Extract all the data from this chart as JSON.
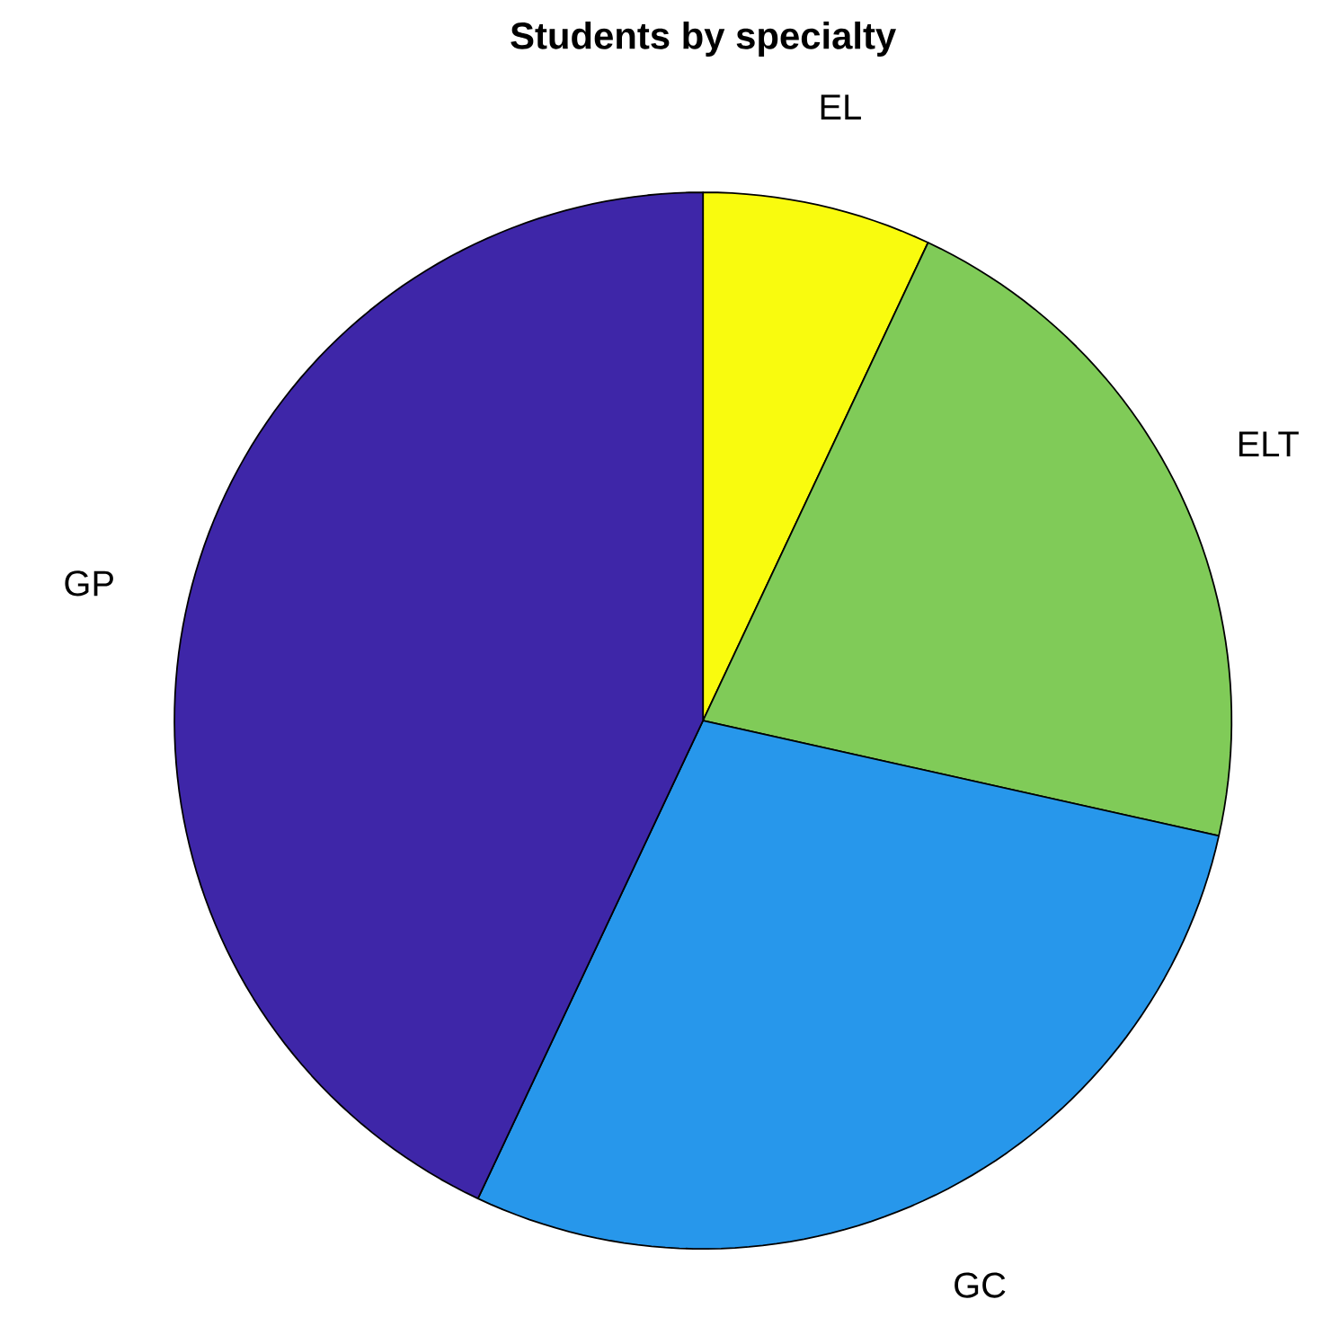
{
  "chart_data": {
    "type": "pie",
    "title": "Students by specialty",
    "categories": [
      "EL",
      "ELT",
      "GC",
      "GP"
    ],
    "values": [
      7,
      21.5,
      28.5,
      43
    ],
    "colors": [
      "#f9fb0e",
      "#80cb58",
      "#2797eb",
      "#3e26a8"
    ]
  }
}
